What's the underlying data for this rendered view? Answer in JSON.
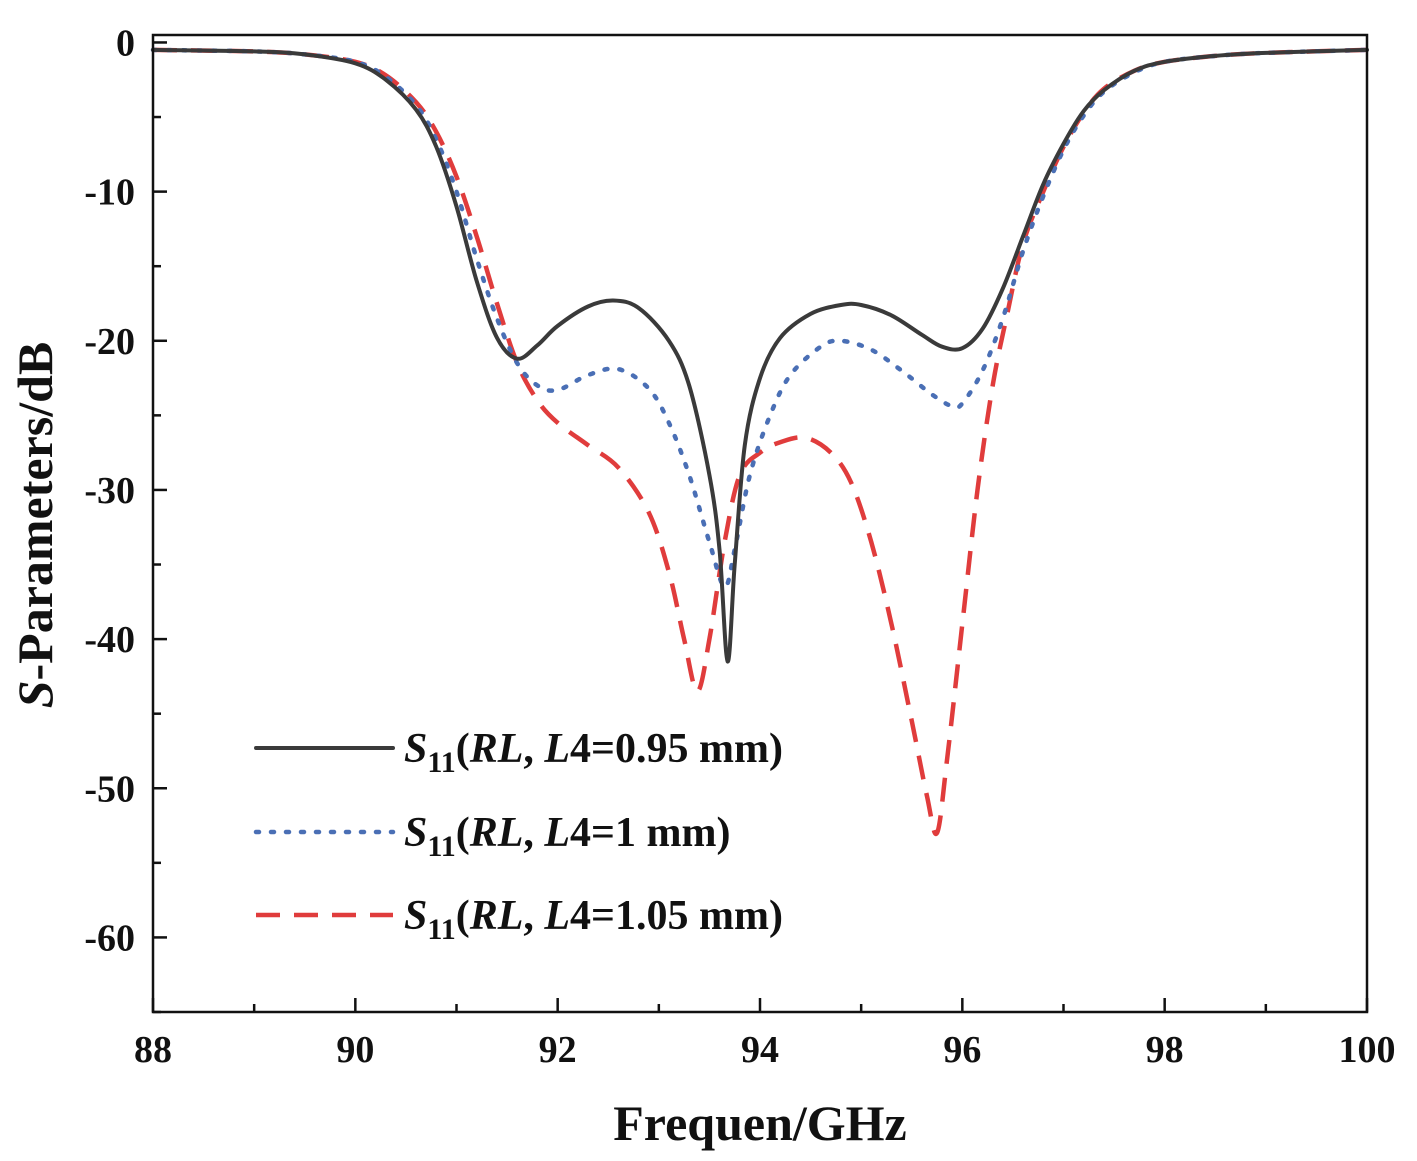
{
  "chart_data": {
    "type": "line",
    "xlabel": "Frequen/GHz",
    "ylabel_italic": "S",
    "ylabel_rest": "-Parameters/dB",
    "xlim": [
      88,
      100
    ],
    "ylim": [
      -65,
      0.5
    ],
    "xticks": [
      88,
      90,
      92,
      94,
      96,
      98,
      100
    ],
    "yticks": [
      0,
      -10,
      -20,
      -30,
      -40,
      -50,
      -60
    ],
    "grid": false,
    "legend_position": "bottom-left",
    "series": [
      {
        "legend_sym": "S",
        "legend_sub": "11",
        "legend_paren": "(",
        "legend_italic1": "RL",
        "legend_mid": ", ",
        "legend_italic2": "L",
        "legend_tail": "4=0.95 mm)",
        "color": "#3a3a3a",
        "style": "solid",
        "x": [
          88,
          89,
          89.5,
          90,
          90.3,
          90.6,
          90.8,
          91.0,
          91.2,
          91.4,
          91.6,
          91.8,
          92.0,
          92.3,
          92.55,
          92.8,
          93.1,
          93.3,
          93.5,
          93.6,
          93.68,
          93.75,
          93.85,
          94.0,
          94.2,
          94.5,
          94.8,
          95.0,
          95.3,
          95.6,
          95.8,
          96.0,
          96.2,
          96.4,
          96.6,
          96.8,
          97.0,
          97.2,
          97.4,
          97.7,
          98.0,
          98.5,
          99,
          100
        ],
        "y": [
          -0.5,
          -0.6,
          -0.8,
          -1.4,
          -2.5,
          -4.5,
          -7.0,
          -11.0,
          -16.0,
          -19.8,
          -21.2,
          -20.3,
          -19.0,
          -17.7,
          -17.3,
          -17.8,
          -20.0,
          -23.0,
          -29.0,
          -34.0,
          -41.5,
          -35.0,
          -27.0,
          -22.5,
          -19.8,
          -18.2,
          -17.6,
          -17.6,
          -18.3,
          -19.6,
          -20.4,
          -20.5,
          -19.2,
          -16.5,
          -13.0,
          -9.5,
          -6.8,
          -4.6,
          -3.2,
          -1.9,
          -1.3,
          -0.9,
          -0.7,
          -0.5
        ]
      },
      {
        "legend_sym": "S",
        "legend_sub": "11",
        "legend_paren": "(",
        "legend_italic1": "RL",
        "legend_mid": ", ",
        "legend_italic2": "L",
        "legend_tail": "4=1 mm)",
        "color": "#4a6fb5",
        "style": "dotted",
        "x": [
          88,
          89,
          89.5,
          90,
          90.3,
          90.6,
          90.8,
          91.0,
          91.2,
          91.4,
          91.6,
          91.8,
          92.0,
          92.3,
          92.6,
          92.9,
          93.1,
          93.3,
          93.5,
          93.65,
          93.75,
          93.9,
          94.1,
          94.3,
          94.6,
          94.8,
          95.1,
          95.4,
          95.7,
          95.9,
          96.0,
          96.2,
          96.4,
          96.6,
          96.8,
          97.0,
          97.2,
          97.4,
          97.7,
          98.0,
          98.5,
          99,
          100
        ],
        "y": [
          -0.5,
          -0.6,
          -0.8,
          -1.3,
          -2.3,
          -4.2,
          -6.5,
          -10.0,
          -14.5,
          -18.5,
          -21.5,
          -23.0,
          -23.3,
          -22.3,
          -21.9,
          -23.2,
          -25.5,
          -29.0,
          -33.5,
          -36.5,
          -34.0,
          -29.0,
          -25.0,
          -22.3,
          -20.4,
          -20.0,
          -20.6,
          -22.0,
          -23.6,
          -24.4,
          -24.2,
          -22.0,
          -18.5,
          -14.0,
          -10.3,
          -7.2,
          -4.9,
          -3.3,
          -2.0,
          -1.3,
          -0.9,
          -0.7,
          -0.5
        ]
      },
      {
        "legend_sym": "S",
        "legend_sub": "11",
        "legend_paren": "(",
        "legend_italic1": "RL",
        "legend_mid": ", ",
        "legend_italic2": "L",
        "legend_tail": "4=1.05 mm)",
        "color": "#e03c3c",
        "style": "dashed",
        "x": [
          88,
          89,
          89.5,
          90,
          90.3,
          90.6,
          90.8,
          91.0,
          91.2,
          91.4,
          91.6,
          91.8,
          92.0,
          92.3,
          92.6,
          92.9,
          93.1,
          93.25,
          93.38,
          93.5,
          93.65,
          93.8,
          94.0,
          94.2,
          94.45,
          94.7,
          94.9,
          95.1,
          95.3,
          95.5,
          95.65,
          95.75,
          95.85,
          96.0,
          96.15,
          96.3,
          96.45,
          96.6,
          96.8,
          97.0,
          97.2,
          97.4,
          97.7,
          98.0,
          98.5,
          99,
          100
        ],
        "y": [
          -0.5,
          -0.6,
          -0.8,
          -1.3,
          -2.2,
          -4.0,
          -6.0,
          -9.0,
          -13.0,
          -17.5,
          -21.5,
          -24.0,
          -25.5,
          -27.0,
          -28.5,
          -31.5,
          -35.5,
          -40.0,
          -43.5,
          -40.0,
          -33.5,
          -29.0,
          -27.5,
          -26.8,
          -26.5,
          -27.5,
          -29.5,
          -33.5,
          -39.0,
          -45.5,
          -50.5,
          -53.0,
          -48.0,
          -39.0,
          -30.0,
          -23.0,
          -18.0,
          -13.5,
          -10.0,
          -7.0,
          -4.7,
          -3.1,
          -1.9,
          -1.3,
          -0.9,
          -0.7,
          -0.5
        ]
      }
    ]
  }
}
